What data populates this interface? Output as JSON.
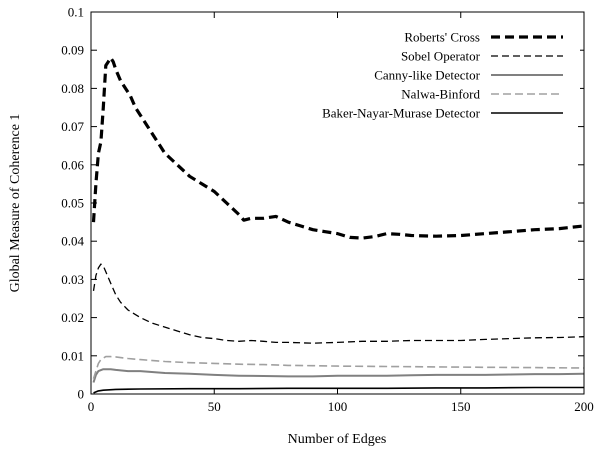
{
  "chart_data": {
    "type": "line",
    "title": "",
    "xlabel": "Number of Edges",
    "ylabel": "Global Measure of Coherence 1",
    "xlim": [
      0,
      200
    ],
    "ylim": [
      0,
      0.1
    ],
    "x_ticks": [
      "0",
      "50",
      "100",
      "150",
      "200"
    ],
    "y_ticks": [
      "0",
      "0.01",
      "0.02",
      "0.03",
      "0.04",
      "0.05",
      "0.06",
      "0.07",
      "0.08",
      "0.09",
      "0.1"
    ],
    "grid": false,
    "legend_position": "top-right",
    "series": [
      {
        "name": "Roberts' Cross",
        "style": {
          "color": "#000000",
          "dash": "9,5",
          "width": 3.2
        },
        "points": [
          [
            1,
            0.045
          ],
          [
            2,
            0.055
          ],
          [
            3,
            0.063
          ],
          [
            4,
            0.066
          ],
          [
            5,
            0.075
          ],
          [
            6,
            0.086
          ],
          [
            7,
            0.087
          ],
          [
            8,
            0.088
          ],
          [
            9,
            0.087
          ],
          [
            10,
            0.085
          ],
          [
            12,
            0.082
          ],
          [
            14,
            0.08
          ],
          [
            16,
            0.078
          ],
          [
            18,
            0.075
          ],
          [
            20,
            0.073
          ],
          [
            25,
            0.068
          ],
          [
            30,
            0.063
          ],
          [
            35,
            0.06
          ],
          [
            40,
            0.057
          ],
          [
            45,
            0.055
          ],
          [
            50,
            0.053
          ],
          [
            55,
            0.05
          ],
          [
            60,
            0.047
          ],
          [
            62,
            0.0455
          ],
          [
            65,
            0.046
          ],
          [
            70,
            0.046
          ],
          [
            75,
            0.0465
          ],
          [
            80,
            0.045
          ],
          [
            85,
            0.044
          ],
          [
            90,
            0.043
          ],
          [
            95,
            0.0425
          ],
          [
            100,
            0.042
          ],
          [
            105,
            0.041
          ],
          [
            110,
            0.0408
          ],
          [
            115,
            0.0412
          ],
          [
            120,
            0.042
          ],
          [
            125,
            0.0418
          ],
          [
            130,
            0.0415
          ],
          [
            140,
            0.0413
          ],
          [
            150,
            0.0415
          ],
          [
            160,
            0.042
          ],
          [
            170,
            0.0425
          ],
          [
            180,
            0.043
          ],
          [
            190,
            0.0433
          ],
          [
            200,
            0.044
          ]
        ]
      },
      {
        "name": "Sobel Operator",
        "style": {
          "color": "#000000",
          "dash": "7,4",
          "width": 1.3
        },
        "points": [
          [
            1,
            0.027
          ],
          [
            2,
            0.031
          ],
          [
            3,
            0.033
          ],
          [
            4,
            0.034
          ],
          [
            5,
            0.0335
          ],
          [
            6,
            0.032
          ],
          [
            8,
            0.029
          ],
          [
            10,
            0.026
          ],
          [
            12,
            0.024
          ],
          [
            15,
            0.022
          ],
          [
            20,
            0.02
          ],
          [
            25,
            0.0185
          ],
          [
            30,
            0.0175
          ],
          [
            35,
            0.0165
          ],
          [
            40,
            0.0155
          ],
          [
            45,
            0.0148
          ],
          [
            50,
            0.0145
          ],
          [
            55,
            0.014
          ],
          [
            60,
            0.0138
          ],
          [
            65,
            0.014
          ],
          [
            70,
            0.0138
          ],
          [
            75,
            0.0135
          ],
          [
            80,
            0.0135
          ],
          [
            90,
            0.0133
          ],
          [
            100,
            0.0135
          ],
          [
            110,
            0.0138
          ],
          [
            120,
            0.0138
          ],
          [
            130,
            0.014
          ],
          [
            140,
            0.014
          ],
          [
            150,
            0.014
          ],
          [
            160,
            0.0143
          ],
          [
            170,
            0.0145
          ],
          [
            180,
            0.0147
          ],
          [
            190,
            0.0148
          ],
          [
            200,
            0.015
          ]
        ]
      },
      {
        "name": "Canny-like Detector",
        "style": {
          "color": "#808080",
          "dash": "",
          "width": 2.0
        },
        "points": [
          [
            1,
            0.003
          ],
          [
            2,
            0.005
          ],
          [
            3,
            0.006
          ],
          [
            5,
            0.0065
          ],
          [
            8,
            0.0065
          ],
          [
            10,
            0.0063
          ],
          [
            15,
            0.006
          ],
          [
            20,
            0.006
          ],
          [
            30,
            0.0055
          ],
          [
            40,
            0.0053
          ],
          [
            50,
            0.005
          ],
          [
            60,
            0.0048
          ],
          [
            70,
            0.0047
          ],
          [
            80,
            0.0046
          ],
          [
            90,
            0.0046
          ],
          [
            100,
            0.0048
          ],
          [
            110,
            0.0048
          ],
          [
            120,
            0.0048
          ],
          [
            130,
            0.0049
          ],
          [
            140,
            0.005
          ],
          [
            150,
            0.005
          ],
          [
            160,
            0.005
          ],
          [
            170,
            0.0051
          ],
          [
            180,
            0.0052
          ],
          [
            190,
            0.0052
          ],
          [
            200,
            0.0053
          ]
        ]
      },
      {
        "name": "Nalwa-Binford",
        "style": {
          "color": "#a0a0a0",
          "dash": "8,4",
          "width": 1.6
        },
        "points": [
          [
            1,
            0.004
          ],
          [
            2,
            0.006
          ],
          [
            3,
            0.008
          ],
          [
            4,
            0.009
          ],
          [
            6,
            0.0098
          ],
          [
            8,
            0.0098
          ],
          [
            10,
            0.0097
          ],
          [
            15,
            0.0093
          ],
          [
            20,
            0.009
          ],
          [
            30,
            0.0085
          ],
          [
            40,
            0.0082
          ],
          [
            50,
            0.008
          ],
          [
            60,
            0.0078
          ],
          [
            70,
            0.0077
          ],
          [
            80,
            0.0075
          ],
          [
            90,
            0.0074
          ],
          [
            100,
            0.0073
          ],
          [
            120,
            0.0072
          ],
          [
            140,
            0.0071
          ],
          [
            160,
            0.007
          ],
          [
            180,
            0.0069
          ],
          [
            200,
            0.0068
          ]
        ]
      },
      {
        "name": "Baker-Nayar-Murase Detector",
        "style": {
          "color": "#000000",
          "dash": "",
          "width": 1.6
        },
        "points": [
          [
            1,
            0.0003
          ],
          [
            3,
            0.0008
          ],
          [
            5,
            0.001
          ],
          [
            10,
            0.0012
          ],
          [
            20,
            0.0013
          ],
          [
            40,
            0.0014
          ],
          [
            60,
            0.0014
          ],
          [
            80,
            0.0015
          ],
          [
            100,
            0.0015
          ],
          [
            120,
            0.0015
          ],
          [
            140,
            0.0016
          ],
          [
            160,
            0.0016
          ],
          [
            180,
            0.0017
          ],
          [
            200,
            0.0017
          ]
        ]
      }
    ]
  }
}
